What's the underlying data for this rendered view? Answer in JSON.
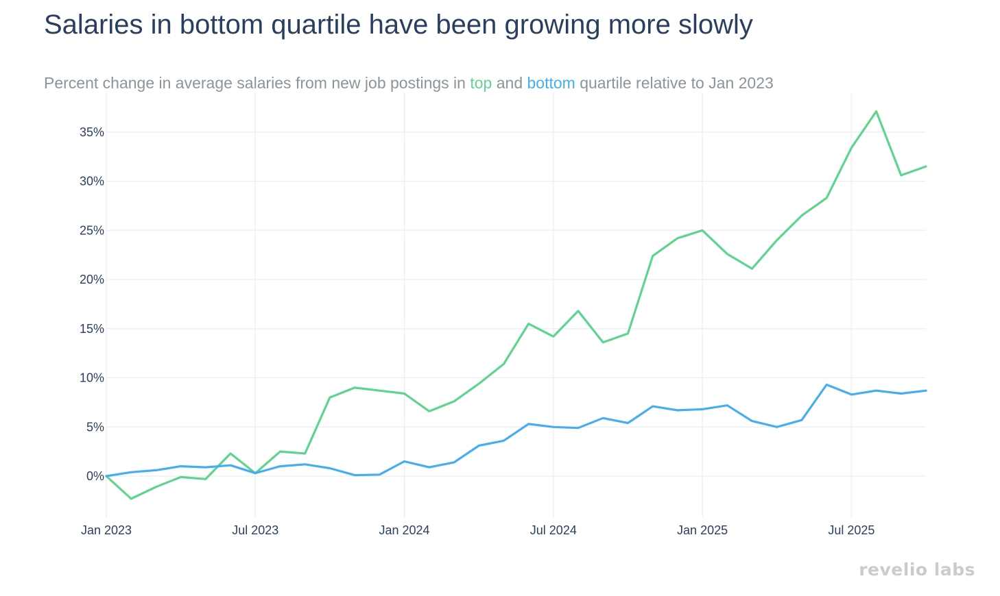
{
  "title": "Salaries in bottom quartile have been growing more slowly",
  "subtitle": {
    "prefix": "Percent change in average salaries from new job postings in ",
    "top_word": "top",
    "middle": " and ",
    "bottom_word": "bottom",
    "suffix": " quartile relative to Jan 2023"
  },
  "brand": "revelio labs",
  "colors": {
    "top": "#5dd58f",
    "bottom": "#46aef0",
    "grid": "#ebedf0",
    "title": "#2a3f5f",
    "subtitle": "#8a949b"
  },
  "chart_data": {
    "type": "line",
    "title": "Salaries in bottom quartile have been growing more slowly",
    "xlabel": "",
    "ylabel": "",
    "ylim": [
      -4.5,
      39
    ],
    "grid": true,
    "legend": "none",
    "x": [
      "2023-01",
      "2023-02",
      "2023-03",
      "2023-04",
      "2023-05",
      "2023-06",
      "2023-07",
      "2023-08",
      "2023-09",
      "2023-10",
      "2023-11",
      "2023-12",
      "2024-01",
      "2024-02",
      "2024-03",
      "2024-04",
      "2024-05",
      "2024-06",
      "2024-07",
      "2024-08",
      "2024-09",
      "2024-10",
      "2024-11",
      "2024-12",
      "2025-01",
      "2025-02",
      "2025-03",
      "2025-04",
      "2025-05",
      "2025-06",
      "2025-07",
      "2025-08",
      "2025-09",
      "2025-10"
    ],
    "x_ticks": [
      {
        "date": "2023-01",
        "label": "Jan 2023"
      },
      {
        "date": "2023-07",
        "label": "Jul 2023"
      },
      {
        "date": "2024-01",
        "label": "Jan 2024"
      },
      {
        "date": "2024-07",
        "label": "Jul 2024"
      },
      {
        "date": "2025-01",
        "label": "Jan 2025"
      },
      {
        "date": "2025-07",
        "label": "Jul 2025"
      }
    ],
    "y_ticks": [
      {
        "value": 0,
        "label": "0%"
      },
      {
        "value": 5,
        "label": "5%"
      },
      {
        "value": 10,
        "label": "10%"
      },
      {
        "value": 15,
        "label": "15%"
      },
      {
        "value": 20,
        "label": "20%"
      },
      {
        "value": 25,
        "label": "25%"
      },
      {
        "value": 30,
        "label": "30%"
      },
      {
        "value": 35,
        "label": "35%"
      }
    ],
    "series": [
      {
        "name": "top",
        "color": "#5dd58f",
        "values": [
          0,
          -2.3,
          -1.1,
          -0.1,
          -0.3,
          2.3,
          0.3,
          2.5,
          2.3,
          8.0,
          9.0,
          8.7,
          8.4,
          6.6,
          7.6,
          9.4,
          11.4,
          15.5,
          14.2,
          16.8,
          13.6,
          14.5,
          22.4,
          24.2,
          25.0,
          22.6,
          21.1,
          24.0,
          26.5,
          28.3,
          33.4,
          37.1,
          30.6,
          31.5
        ]
      },
      {
        "name": "bottom",
        "color": "#46aef0",
        "values": [
          0,
          0.4,
          0.6,
          1.0,
          0.9,
          1.1,
          0.3,
          1.0,
          1.2,
          0.8,
          0.1,
          0.15,
          1.5,
          0.9,
          1.4,
          3.1,
          3.6,
          5.3,
          5.0,
          4.9,
          5.9,
          5.4,
          7.1,
          6.7,
          6.8,
          7.2,
          5.6,
          5.0,
          5.7,
          9.3,
          8.3,
          8.7,
          8.4,
          8.7
        ]
      }
    ]
  }
}
